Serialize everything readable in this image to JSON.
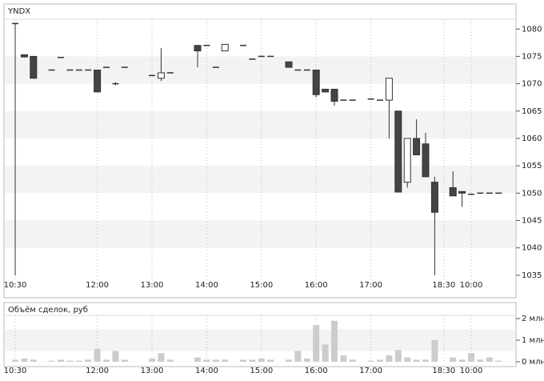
{
  "chart_data": {
    "type": "candlestick",
    "title": "YNDX",
    "volume_title": "Объём сделок, руб",
    "categories": [
      "10:30",
      null,
      null,
      null,
      null,
      null,
      null,
      null,
      null,
      "12:00",
      null,
      null,
      null,
      null,
      null,
      "13:00",
      null,
      null,
      null,
      null,
      null,
      "14:00",
      null,
      null,
      null,
      null,
      null,
      "15:00",
      null,
      null,
      null,
      null,
      null,
      "16:00",
      null,
      null,
      null,
      null,
      null,
      "17:00",
      null,
      null,
      null,
      null,
      null,
      null,
      null,
      "18:30",
      null,
      null,
      "10:00",
      null,
      null,
      null
    ],
    "open": [
      1081,
      1075.3,
      1075,
      null,
      1072.5,
      1074.8,
      1072.5,
      1072.5,
      1072.5,
      1072.5,
      1073,
      1070,
      1073,
      null,
      null,
      1071.5,
      1071,
      1072,
      null,
      null,
      1077,
      1077,
      1073,
      1076,
      null,
      1077,
      1074.5,
      1075,
      1075,
      null,
      1074,
      1072.5,
      1072.5,
      1072.5,
      1069,
      1069,
      1067,
      1067,
      null,
      1067.2,
      1067,
      1067,
      1065,
      1052,
      1060,
      1059,
      1052,
      null,
      1051,
      1050.3,
      1049.8,
      1050,
      1050,
      1050
    ],
    "high": [
      1081,
      1075.3,
      1075,
      null,
      1072.5,
      1074.8,
      1072.5,
      1072.5,
      1072.5,
      1072.5,
      1073,
      1070.3,
      1073,
      null,
      null,
      1071.5,
      1076.5,
      1072,
      null,
      null,
      1077,
      1077,
      1073,
      1077.2,
      null,
      1077,
      1074.5,
      1075,
      1075,
      null,
      1074,
      1072.5,
      1072.5,
      1072.5,
      1069,
      1069,
      1067,
      1067,
      null,
      1067.2,
      1067,
      1071,
      1065,
      1060,
      1063.5,
      1061,
      1053,
      null,
      1054,
      1050.3,
      1049.8,
      1050,
      1050,
      1050
    ],
    "low": [
      1035,
      1074.8,
      1071,
      null,
      1072.5,
      1074.8,
      1072.5,
      1072.5,
      1072.5,
      1068.5,
      1073,
      1069.7,
      1073,
      null,
      null,
      1071.5,
      1070.5,
      1072,
      null,
      null,
      1073,
      1077,
      1073,
      1076,
      null,
      1077,
      1074.5,
      1075,
      1075,
      null,
      1073,
      1072.5,
      1072.5,
      1067.5,
      1068.5,
      1066,
      1067,
      1067,
      null,
      1067.2,
      1067,
      1060,
      1050.2,
      1051,
      1057,
      1053,
      1035,
      null,
      1049.5,
      1047.5,
      1049.8,
      1050,
      1050,
      1050
    ],
    "close": [
      1081,
      1074.9,
      1071,
      null,
      1072.5,
      1074.8,
      1072.5,
      1072.5,
      1072.5,
      1068.5,
      1073,
      1070,
      1073,
      null,
      null,
      1071.5,
      1072,
      1072,
      null,
      null,
      1076,
      1077,
      1073,
      1077.2,
      null,
      1077,
      1074.5,
      1075,
      1075,
      null,
      1073,
      1072.5,
      1072.5,
      1068,
      1068.5,
      1066.8,
      1067,
      1067,
      null,
      1067.2,
      1067,
      1071,
      1050.2,
      1060,
      1057,
      1053,
      1046.5,
      null,
      1049.5,
      1050,
      1049.8,
      1050,
      1050,
      1050
    ],
    "volume": [
      0.1,
      0.15,
      0.1,
      null,
      0.05,
      0.1,
      0.05,
      0.05,
      0.1,
      0.6,
      0.1,
      0.5,
      0.1,
      null,
      null,
      0.15,
      0.4,
      0.1,
      null,
      null,
      0.2,
      0.1,
      0.1,
      0.1,
      null,
      0.1,
      0.1,
      0.15,
      0.1,
      null,
      0.1,
      0.5,
      0.15,
      1.7,
      0.8,
      1.9,
      0.3,
      0.1,
      null,
      0.05,
      0.1,
      0.3,
      0.55,
      0.2,
      0.1,
      0.1,
      1.0,
      null,
      0.2,
      0.1,
      0.4,
      0.1,
      0.2,
      0.05
    ],
    "up_color": "#ffffff",
    "down_color": "#444444",
    "volume_color": "#cccccc",
    "ylim": [
      1034.1,
      1081.5
    ],
    "yticks": [
      1035,
      1040,
      1045,
      1050,
      1055,
      1060,
      1065,
      1070,
      1075,
      1080
    ],
    "volume_ylim": [
      0,
      2.15
    ],
    "volume_yticks": [
      {
        "value": 0,
        "label": "0 млн"
      },
      {
        "value": 1,
        "label": "1 млн"
      },
      {
        "value": 2,
        "label": "2 млн"
      }
    ],
    "grid": true
  }
}
